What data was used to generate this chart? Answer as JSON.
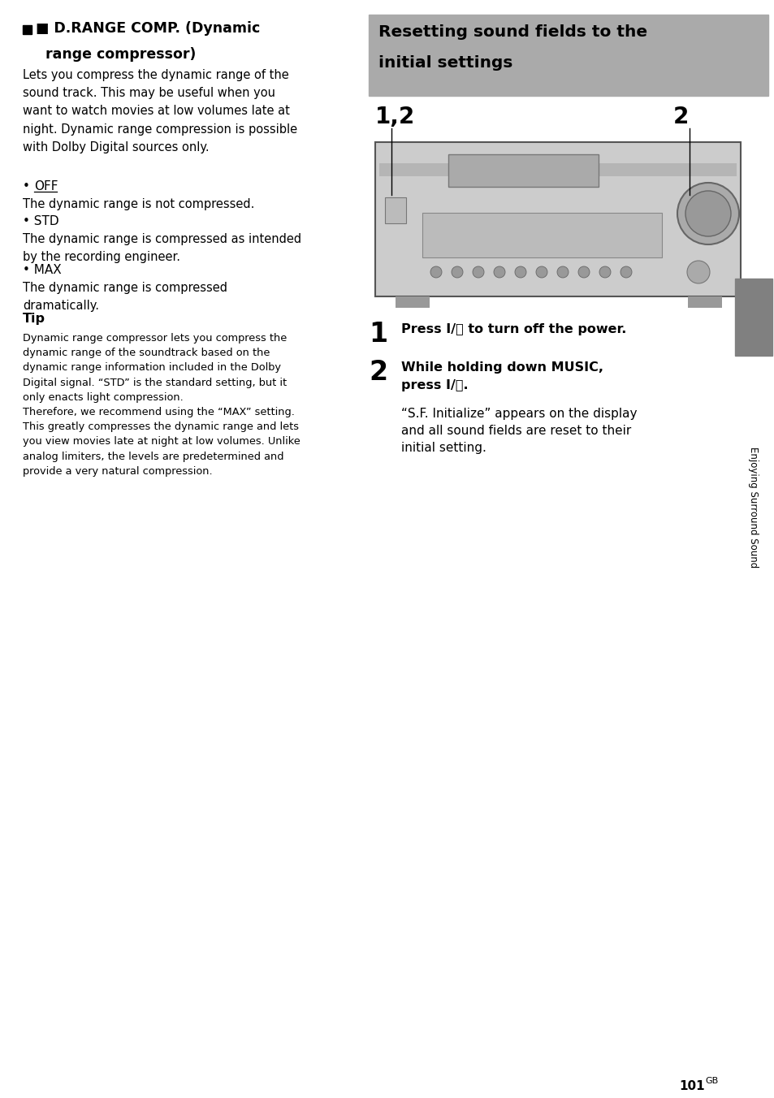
{
  "bg_color": "#ffffff",
  "header_bg": "#aaaaaa",
  "sidebar_bg": "#808080",
  "left_col": {
    "section_title_line1": "■ D.RANGE COMP. (Dynamic",
    "section_title_line2": "    range compressor)",
    "body1": "Lets you compress the dynamic range of the\nsound track. This may be useful when you\nwant to watch movies at low volumes late at\nnight. Dynamic range compression is possible\nwith Dolby Digital sources only.",
    "bullet_off": "• OFF",
    "bullet_off_body": "The dynamic range is not compressed.",
    "bullet_std": "• STD",
    "bullet_std_body": "The dynamic range is compressed as intended\nby the recording engineer.",
    "bullet_max": "• MAX",
    "bullet_max_body": "The dynamic range is compressed\ndramatically.",
    "tip_title": "Tip",
    "tip_body": "Dynamic range compressor lets you compress the\ndynamic range of the soundtrack based on the\ndynamic range information included in the Dolby\nDigital signal. “STD” is the standard setting, but it\nonly enacts light compression.\nTherefore, we recommend using the “MAX” setting.\nThis greatly compresses the dynamic range and lets\nyou view movies late at night at low volumes. Unlike\nanalog limiters, the levels are predetermined and\nprovide a very natural compression."
  },
  "right_col": {
    "header_line1": "Resetting sound fields to the",
    "header_line2": "initial settings",
    "label_12": "1,2",
    "label_2": "2",
    "step1_num": "1",
    "step1_text": "Press I/⏻ to turn off the power.",
    "step2_num": "2",
    "step2_bold_line1": "While holding down MUSIC,",
    "step2_bold_line2": "press I/⏻.",
    "step2_body": "“S.F. Initialize” appears on the display\nand all sound fields are reset to their\ninitial setting."
  },
  "sidebar_text": "Enjoying Surround Sound",
  "page_num": "101",
  "page_suffix": "GB"
}
